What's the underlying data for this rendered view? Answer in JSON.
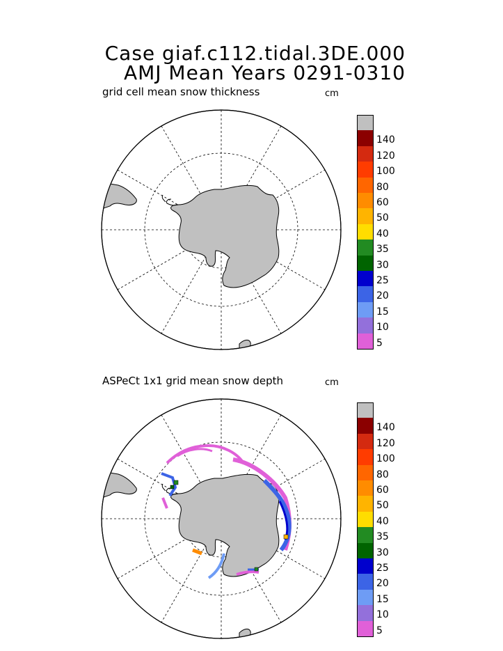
{
  "title_line1": "Case giaf.c112.tidal.3DE.000",
  "title_line2": "AMJ Mean    Years 0291-0310",
  "panels": [
    {
      "label": "grid cell mean snow thickness",
      "unit": "cm"
    },
    {
      "label": "ASPeCt 1x1 grid mean snow depth",
      "unit": "cm"
    }
  ],
  "colorbar": {
    "levels": [
      {
        "label": "",
        "color": "#c0c0c0"
      },
      {
        "label": "140",
        "color": "#8b0000"
      },
      {
        "label": "120",
        "color": "#d42a10"
      },
      {
        "label": "100",
        "color": "#ff3c00"
      },
      {
        "label": "80",
        "color": "#ff6600"
      },
      {
        "label": "60",
        "color": "#ff8c00"
      },
      {
        "label": "50",
        "color": "#ffb400"
      },
      {
        "label": "40",
        "color": "#ffdd00"
      },
      {
        "label": "35",
        "color": "#228b22"
      },
      {
        "label": "30",
        "color": "#006400"
      },
      {
        "label": "25",
        "color": "#0000cd"
      },
      {
        "label": "20",
        "color": "#3c64e6"
      },
      {
        "label": "15",
        "color": "#6e9cf5"
      },
      {
        "label": "10",
        "color": "#9370db"
      },
      {
        "label": "5",
        "color": "#e060d8"
      }
    ]
  },
  "colors": {
    "land": "#c0c0c0",
    "outline": "#000000"
  }
}
